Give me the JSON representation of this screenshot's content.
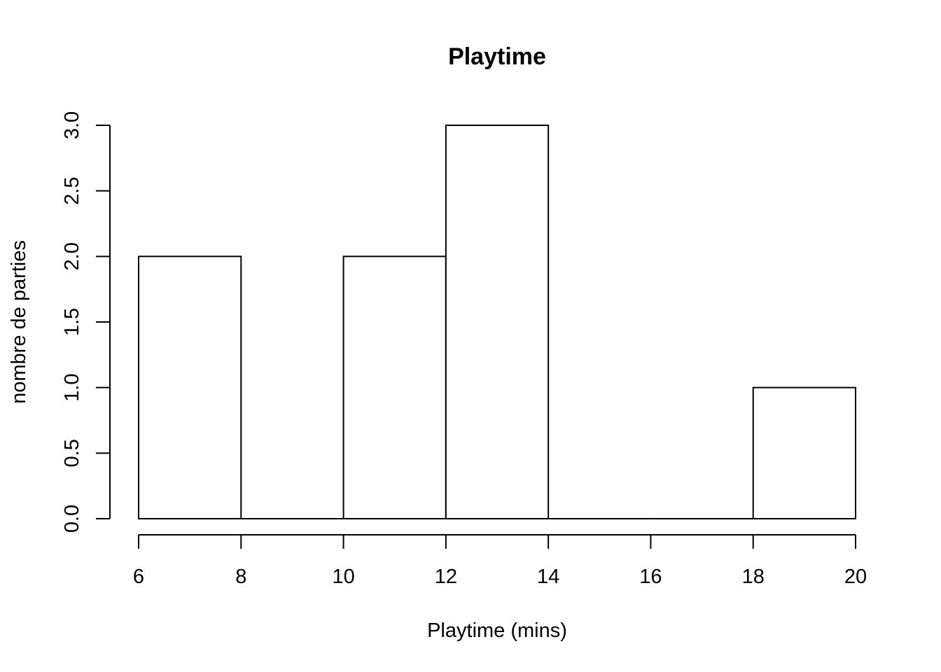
{
  "chart_data": {
    "type": "bar",
    "title": "Playtime",
    "xlabel": "Playtime (mins)",
    "ylabel": "nombre de parties",
    "bins": [
      {
        "from": 6,
        "to": 8,
        "count": 2
      },
      {
        "from": 8,
        "to": 10,
        "count": 0
      },
      {
        "from": 10,
        "to": 12,
        "count": 2
      },
      {
        "from": 12,
        "to": 14,
        "count": 3
      },
      {
        "from": 14,
        "to": 16,
        "count": 0
      },
      {
        "from": 16,
        "to": 18,
        "count": 0
      },
      {
        "from": 18,
        "to": 20,
        "count": 1
      }
    ],
    "x_ticks": [
      "6",
      "8",
      "10",
      "12",
      "14",
      "16",
      "18",
      "20"
    ],
    "y_ticks": [
      "0.0",
      "0.5",
      "1.0",
      "1.5",
      "2.0",
      "2.5",
      "3.0"
    ],
    "xlim": [
      6,
      20
    ],
    "ylim": [
      0,
      3
    ],
    "grid": false,
    "legend": "none"
  }
}
